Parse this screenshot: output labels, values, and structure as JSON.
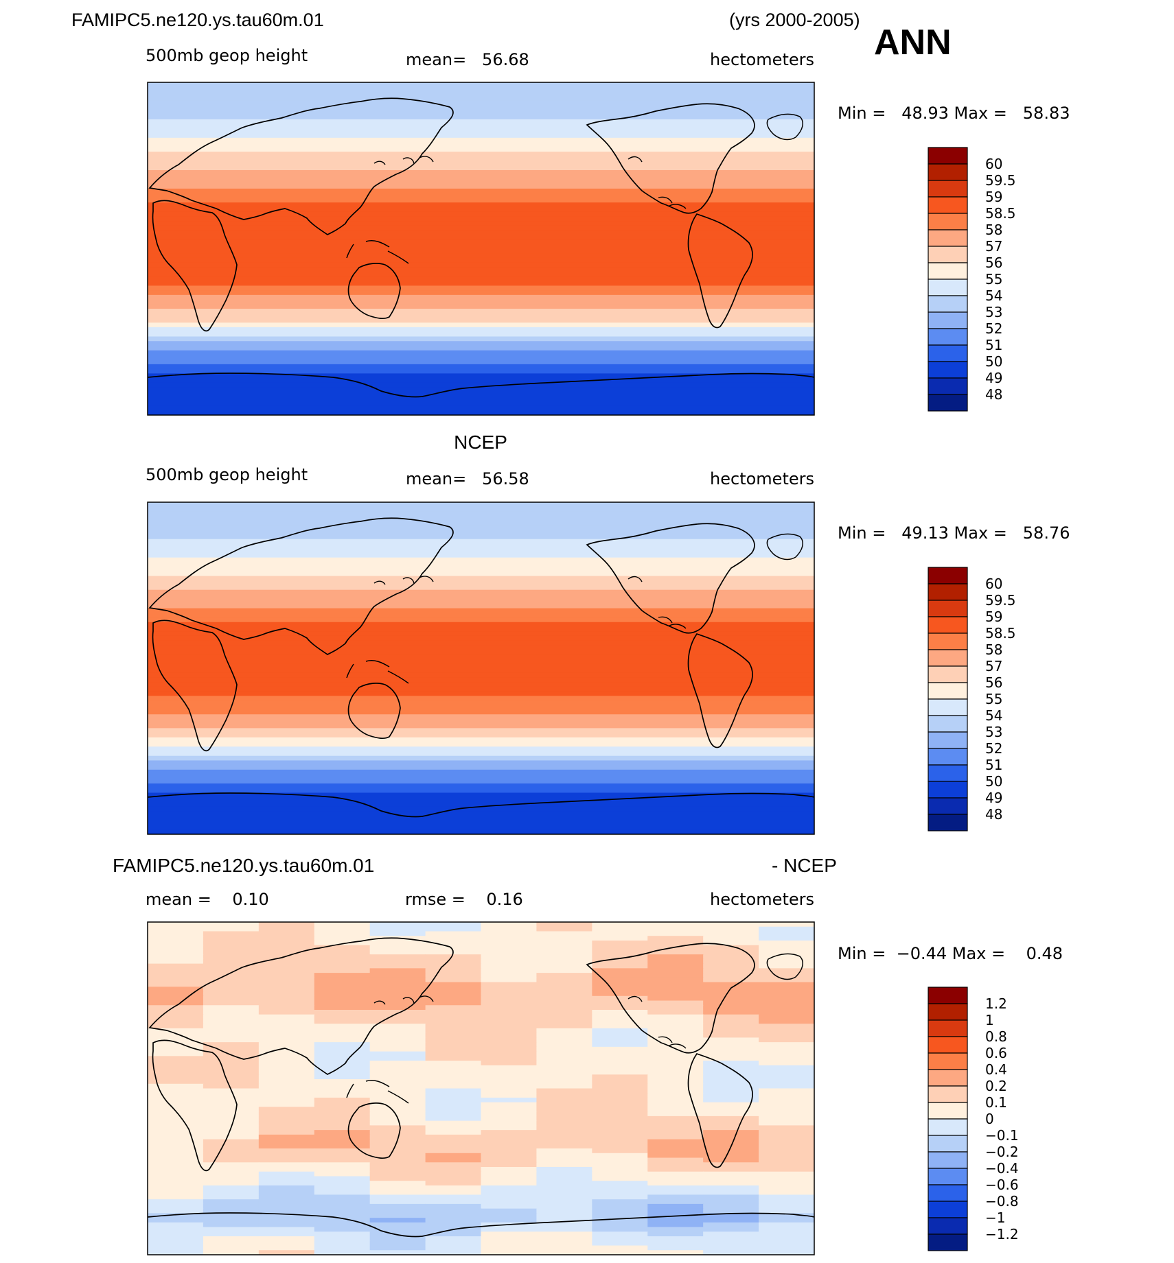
{
  "header": {
    "case_name": "FAMIPC5.ne120.ys.tau60m.01",
    "years": "(yrs 2000-2005)",
    "season": "ANN"
  },
  "colors": {
    "warm": [
      "#8b0000",
      "#b22000",
      "#d93a10",
      "#f7571f",
      "#fc7f47",
      "#fda882",
      "#fed0b6",
      "#fff0de"
    ],
    "cool": [
      "#d8e8fb",
      "#b6d0f7",
      "#8fb2f5",
      "#5c8cf2",
      "#2b62ea",
      "#0c3fd8",
      "#0a2bb0",
      "#041c83"
    ],
    "land_line": "#000000"
  },
  "chart_data": [
    {
      "type": "heatmap",
      "name": "model",
      "title": "",
      "left_label": "500mb geop height",
      "center_label": "mean=   56.68",
      "right_label": "hectometers",
      "minmax_label": "Min =   48.93 Max =   58.83",
      "min": 48.93,
      "max": 58.83,
      "mean": 56.68,
      "field": "geopotential_height",
      "lat_profile": {
        "lat": [
          90,
          80,
          70,
          60,
          50,
          40,
          30,
          20,
          10,
          0,
          -10,
          -20,
          -30,
          -40,
          -50,
          -60,
          -70,
          -80,
          -90
        ],
        "value": [
          53.0,
          53.6,
          54.0,
          55.1,
          56.2,
          57.3,
          58.3,
          58.7,
          58.8,
          58.8,
          58.7,
          58.5,
          57.6,
          55.8,
          53.2,
          51.2,
          49.8,
          49.4,
          49.2
        ]
      },
      "colorbar": {
        "levels": [
          "60",
          "59.5",
          "59",
          "58.5",
          "58",
          "57",
          "56",
          "55",
          "54",
          "53",
          "52",
          "51",
          "50",
          "49",
          "48"
        ],
        "bounds": [
          47,
          48,
          49,
          50,
          51,
          52,
          53,
          54,
          55,
          56,
          57,
          58,
          58.5,
          59,
          59.5,
          60,
          61
        ]
      }
    },
    {
      "type": "heatmap",
      "name": "obs",
      "title": "NCEP",
      "left_label": "500mb geop height",
      "center_label": "mean=   56.58",
      "right_label": "hectometers",
      "minmax_label": "Min =   49.13 Max =   58.76",
      "min": 49.13,
      "max": 58.76,
      "mean": 56.58,
      "field": "geopotential_height",
      "lat_profile": {
        "lat": [
          90,
          80,
          70,
          60,
          50,
          40,
          30,
          20,
          10,
          0,
          -10,
          -20,
          -30,
          -40,
          -50,
          -60,
          -70,
          -80,
          -90
        ],
        "value": [
          53.0,
          53.5,
          53.9,
          55.0,
          56.1,
          57.2,
          58.2,
          58.7,
          58.75,
          58.75,
          58.6,
          58.4,
          57.5,
          55.7,
          53.2,
          51.2,
          49.8,
          49.5,
          49.3
        ]
      },
      "colorbar": {
        "levels": [
          "60",
          "59.5",
          "59",
          "58.5",
          "58",
          "57",
          "56",
          "55",
          "54",
          "53",
          "52",
          "51",
          "50",
          "49",
          "48"
        ],
        "bounds": [
          47,
          48,
          49,
          50,
          51,
          52,
          53,
          54,
          55,
          56,
          57,
          58,
          58.5,
          59,
          59.5,
          60,
          61
        ]
      }
    },
    {
      "type": "heatmap",
      "name": "difference",
      "title_left": "FAMIPC5.ne120.ys.tau60m.01",
      "title_right": "- NCEP",
      "left_label": "mean =    0.10",
      "center_label": "rmse =    0.16",
      "right_label": "hectometers",
      "minmax_label": "Min =  −0.44 Max =    0.48",
      "min": -0.44,
      "max": 0.48,
      "mean": 0.1,
      "rmse": 0.16,
      "field": "difference",
      "lat_profile": {
        "lat": [
          90,
          80,
          70,
          60,
          50,
          40,
          30,
          20,
          10,
          0,
          -10,
          -20,
          -30,
          -40,
          -50,
          -60,
          -70,
          -80,
          -90
        ],
        "value": [
          0.03,
          0.08,
          0.12,
          0.18,
          0.22,
          0.15,
          0.08,
          0.06,
          0.05,
          0.05,
          0.06,
          0.1,
          0.18,
          0.12,
          0.04,
          -0.08,
          -0.18,
          -0.05,
          0.02
        ]
      },
      "colorbar": {
        "levels": [
          "1.2",
          "1",
          "0.8",
          "0.6",
          "0.4",
          "0.2",
          "0.1",
          "0",
          "−0.1",
          "−0.2",
          "−0.4",
          "−0.6",
          "−0.8",
          "−1",
          "−1.2"
        ],
        "bounds": [
          -1.4,
          -1.2,
          -1.0,
          -0.8,
          -0.6,
          -0.4,
          -0.2,
          -0.1,
          0.0,
          0.1,
          0.2,
          0.4,
          0.6,
          0.8,
          1.0,
          1.2,
          1.4
        ]
      }
    }
  ]
}
